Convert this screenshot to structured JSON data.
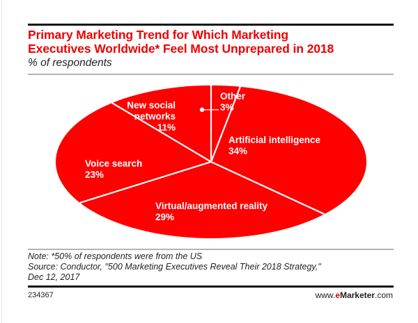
{
  "chart_data": {
    "type": "pie",
    "title": "Primary Marketing Trend for Which Marketing Executives Worldwide* Feel Most Unprepared in 2018",
    "subtitle": "% of respondents",
    "categories": [
      "Other",
      "Artificial intelligence",
      "Virtual/augmented reality",
      "Voice search",
      "New social networks"
    ],
    "values": [
      3,
      34,
      29,
      23,
      11
    ],
    "unit": "%",
    "colors": {
      "slice_fill": "#ff0000",
      "slice_border": "#ffffff"
    },
    "legend": "none (labels inside slices)"
  },
  "header": {
    "title_line1": "Primary Marketing Trend for Which Marketing",
    "title_line2": "Executives Worldwide* Feel Most Unprepared in 2018",
    "subtitle": "% of respondents"
  },
  "labels": {
    "other": {
      "name": "Other",
      "pct": "3%"
    },
    "ai": {
      "name": "Artificial intelligence",
      "pct": "34%"
    },
    "vr": {
      "name": "Virtual/augmented reality",
      "pct": "29%"
    },
    "voice": {
      "name": "Voice search",
      "pct": "23%"
    },
    "social": {
      "name_line1": "New social",
      "name_line2": "networks",
      "pct": "11%"
    }
  },
  "footer": {
    "note": "Note: *50% of respondents were from the US",
    "source_line1": "Source: Conductor, \"500 Marketing Executives Reveal Their 2018 Strategy,\"",
    "source_line2": "Dec 12, 2017",
    "chart_id": "234367",
    "brand_prefix": "www.",
    "brand_e": "e",
    "brand_name": "Marketer",
    "brand_suffix": ".com"
  },
  "colors": {
    "title": "#ee0000",
    "pie": "#ff0000",
    "brand_accent": "#e00000"
  }
}
